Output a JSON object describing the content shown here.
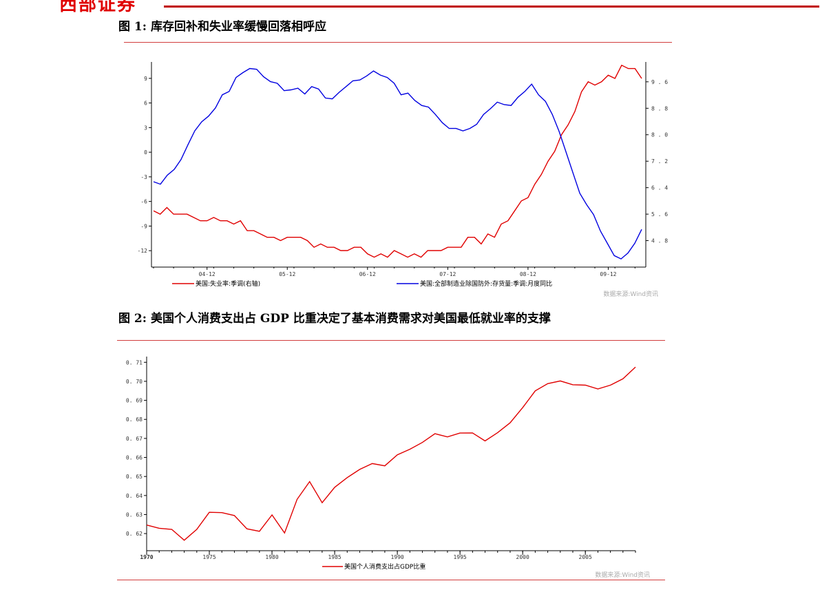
{
  "header": {
    "brand": "西部证券"
  },
  "figure1": {
    "title": "图 1:  库存回补和失业率缓慢回落相呼应"
  },
  "figure2": {
    "title": "图 2:  美国个人消费支出占 GDP 比重决定了基本消费需求对美国最低就业率的支撑"
  },
  "chart_data": [
    {
      "type": "line",
      "x_ticks": [
        "04-12",
        "05-12",
        "06-12",
        "07-12",
        "08-12",
        "09-12"
      ],
      "left_axis": {
        "ticks": [
          9,
          6,
          3,
          0,
          -3,
          -6,
          -9,
          -12
        ],
        "range": [
          -14,
          11
        ]
      },
      "right_axis": {
        "ticks": [
          "9.6",
          "8.8",
          "8.0",
          "7.2",
          "6.4",
          "5.6",
          "4.8"
        ],
        "range": [
          4.0,
          10.2
        ]
      },
      "series": [
        {
          "name": "美国:失业率:季调(右轴)",
          "axis": "right",
          "color": "#e00000",
          "values": [
            5.7,
            5.6,
            5.8,
            5.6,
            5.6,
            5.6,
            5.5,
            5.4,
            5.4,
            5.5,
            5.4,
            5.4,
            5.3,
            5.4,
            5.1,
            5.1,
            5.0,
            4.9,
            4.9,
            4.8,
            4.9,
            4.9,
            4.9,
            4.8,
            4.6,
            4.7,
            4.6,
            4.6,
            4.5,
            4.5,
            4.6,
            4.6,
            4.4,
            4.3,
            4.4,
            4.3,
            4.5,
            4.4,
            4.3,
            4.4,
            4.3,
            4.5,
            4.5,
            4.5,
            4.6,
            4.6,
            4.6,
            4.9,
            4.9,
            4.7,
            5.0,
            4.9,
            5.3,
            5.4,
            5.7,
            6.0,
            6.1,
            6.5,
            6.8,
            7.2,
            7.5,
            8.0,
            8.3,
            8.7,
            9.3,
            9.6,
            9.5,
            9.6,
            9.8,
            9.7,
            10.1,
            10.0,
            10.0,
            9.7
          ]
        },
        {
          "name": "美国:全部制造业除国防外:存货量:季调:月度同比",
          "axis": "left",
          "color": "#0000e0",
          "values": [
            -3.6,
            -3.9,
            -2.8,
            -2.1,
            -0.9,
            0.9,
            2.6,
            3.7,
            4.4,
            5.4,
            7.0,
            7.4,
            9.1,
            9.7,
            10.2,
            10.1,
            9.2,
            8.6,
            8.4,
            7.5,
            7.6,
            7.8,
            7.1,
            8.0,
            7.7,
            6.6,
            6.5,
            7.3,
            8.0,
            8.7,
            8.8,
            9.3,
            9.9,
            9.4,
            9.1,
            8.4,
            7.0,
            7.2,
            6.3,
            5.7,
            5.5,
            4.6,
            3.6,
            2.9,
            2.9,
            2.6,
            2.9,
            3.4,
            4.6,
            5.3,
            6.1,
            5.8,
            5.7,
            6.7,
            7.4,
            8.3,
            7.0,
            6.2,
            4.6,
            2.5,
            0.0,
            -2.5,
            -5.0,
            -6.4,
            -7.6,
            -9.6,
            -11.1,
            -12.6,
            -13.0,
            -12.3,
            -11.1,
            -9.4
          ]
        }
      ],
      "legend_placement": "bottom",
      "source": "数据来源:Wind资讯"
    },
    {
      "type": "line",
      "x": [
        1970,
        1971,
        1972,
        1973,
        1974,
        1975,
        1976,
        1977,
        1978,
        1979,
        1980,
        1981,
        1982,
        1983,
        1984,
        1985,
        1986,
        1987,
        1988,
        1989,
        1990,
        1991,
        1992,
        1993,
        1994,
        1995,
        1996,
        1997,
        1998,
        1999,
        2000,
        2001,
        2002,
        2003,
        2004,
        2005,
        2006,
        2007,
        2008,
        2009
      ],
      "x_ticks": [
        1970,
        1975,
        1980,
        1985,
        1990,
        1995,
        2000,
        2005
      ],
      "y_ticks": [
        "0.71",
        "0.70",
        "0.69",
        "0.68",
        "0.67",
        "0.66",
        "0.65",
        "0.64",
        "0.63",
        "0.62"
      ],
      "ylim": [
        0.611,
        0.713
      ],
      "series": [
        {
          "name": "美国个人消费支出占GDP比重",
          "color": "#e00000",
          "values": [
            0.6245,
            0.6228,
            0.6222,
            0.6165,
            0.6222,
            0.6312,
            0.631,
            0.6295,
            0.6225,
            0.6212,
            0.6298,
            0.6203,
            0.638,
            0.6473,
            0.6362,
            0.6443,
            0.6494,
            0.6537,
            0.6568,
            0.6556,
            0.6614,
            0.6643,
            0.6679,
            0.6725,
            0.6708,
            0.6728,
            0.6729,
            0.6687,
            0.673,
            0.6782,
            0.6862,
            0.695,
            0.6988,
            0.7002,
            0.6982,
            0.698,
            0.696,
            0.698,
            0.7013,
            0.7075
          ]
        }
      ],
      "legend_placement": "bottom",
      "source": "数据来源:Wind资讯"
    }
  ]
}
